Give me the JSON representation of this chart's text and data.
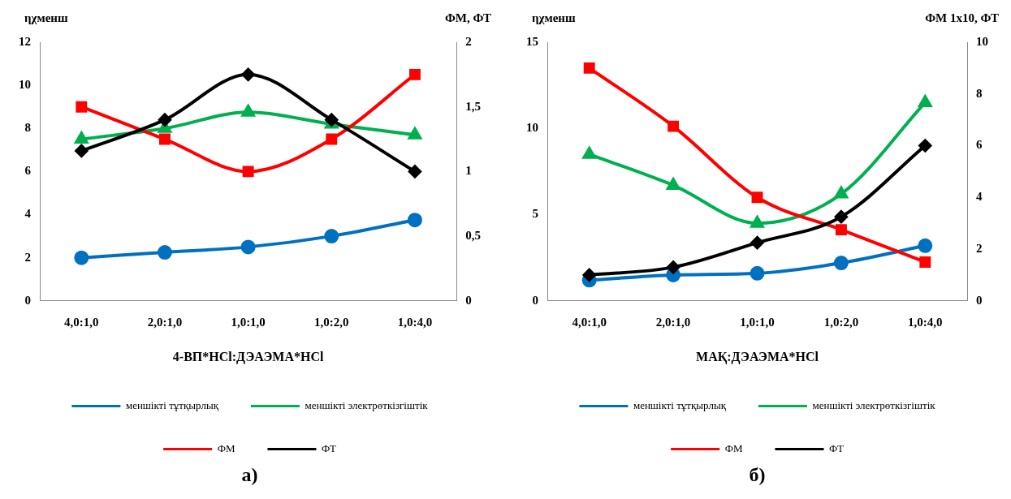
{
  "chart_data": [
    {
      "type": "line",
      "xlabel": "4-ВП*HCl:ДЭАЭМА*HCl",
      "ylabel": "ηχменш",
      "y2label": "ФМ, ФТ",
      "categories": [
        "4,0:1,0",
        "2,0:1,0",
        "1,0:1,0",
        "1,0:2,0",
        "1,0:4,0"
      ],
      "series": [
        {
          "name": "меншікті тұтқырлық",
          "color": "#0070c0",
          "marker": "circle",
          "values": [
            2,
            2.25,
            2.5,
            3,
            3.75
          ]
        },
        {
          "name": "меншікті электрөткізгіштік",
          "color": "#00b050",
          "marker": "triangle",
          "values": [
            7.5,
            8,
            8.75,
            8.2,
            7.7
          ]
        },
        {
          "name": "ФМ",
          "color": "#ff0000",
          "marker": "square",
          "axis": "y2",
          "values": [
            1.5,
            1.25,
            1,
            1.25,
            1.75
          ]
        },
        {
          "name": "ФТ",
          "color": "#000000",
          "marker": "diamond",
          "axis": "y2",
          "values": [
            1.16,
            1.4,
            1.75,
            1.4,
            1
          ]
        }
      ],
      "ylim": [
        0,
        12
      ],
      "yticks": [
        0,
        2,
        4,
        6,
        8,
        10,
        12
      ],
      "y2lim": [
        0,
        2
      ],
      "y2ticks": [
        0,
        {
          "value": 0.5,
          "label": "0,5"
        },
        1,
        {
          "value": 1.5,
          "label": "1,5"
        },
        2
      ],
      "grid": false,
      "legend": "bottom",
      "annotations": [
        "а)"
      ]
    },
    {
      "type": "line",
      "xlabel": "МАҚ:ДЭАЭМА*HCl",
      "ylabel": "ηχменш",
      "y2label": "ФМ 1х10, ФТ",
      "categories": [
        "4,0:1,0",
        "2,0:1,0",
        "1,0:1,0",
        "1,0:2,0",
        "1,0:4,0"
      ],
      "series": [
        {
          "name": "меншікті тұтқырлық",
          "color": "#0070c0",
          "marker": "circle",
          "values": [
            1.2,
            1.5,
            1.6,
            2.2,
            3.2
          ]
        },
        {
          "name": "меншікті электрөткізгіштік",
          "color": "#00b050",
          "marker": "triangle",
          "values": [
            8.5,
            6.7,
            4.5,
            6.2,
            11.5
          ]
        },
        {
          "name": "ФМ",
          "color": "#ff0000",
          "marker": "square",
          "axis": "y2",
          "values": [
            9,
            6.75,
            4,
            2.75,
            1.5
          ]
        },
        {
          "name": "ФТ",
          "color": "#000000",
          "marker": "diamond",
          "axis": "y2",
          "values": [
            1,
            1.3,
            2.25,
            3.25,
            6
          ]
        }
      ],
      "ylim": [
        0,
        15
      ],
      "yticks": [
        0,
        5,
        10,
        15
      ],
      "y2lim": [
        0,
        10
      ],
      "y2ticks": [
        0,
        2,
        4,
        6,
        8,
        10
      ],
      "grid": false,
      "legend": "bottom",
      "annotations": [
        "б)"
      ]
    }
  ]
}
